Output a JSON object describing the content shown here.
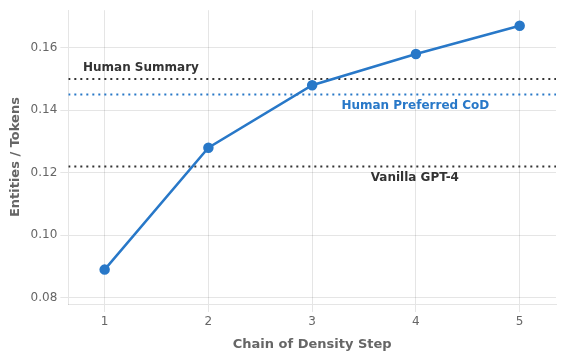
{
  "chart_data": {
    "type": "line",
    "x": [
      1,
      2,
      3,
      4,
      5
    ],
    "values": [
      0.089,
      0.128,
      0.148,
      0.158,
      0.167
    ],
    "color": "#2878C8",
    "marker": "circle",
    "reference_lines": [
      {
        "label": "Human Summary",
        "value": 0.15,
        "color": "#333333",
        "line_style": "dotted"
      },
      {
        "label": "Human Preferred CoD",
        "value": 0.145,
        "color": "#2878C8",
        "line_style": "dotted"
      },
      {
        "label": "Vanilla GPT-4",
        "value": 0.122,
        "color": "#333333",
        "line_style": "dotted"
      }
    ],
    "xlabel": "Chain of Density Step",
    "ylabel": "Entities / Tokens",
    "xlim": [
      0.65,
      5.35
    ],
    "ylim": [
      0.078,
      0.172
    ],
    "xticks": [
      1,
      2,
      3,
      4,
      5
    ],
    "yticks": [
      0.08,
      {
        "value": 0.1,
        "label": "0.10"
      },
      0.12,
      0.14,
      0.16
    ],
    "grid": true
  }
}
